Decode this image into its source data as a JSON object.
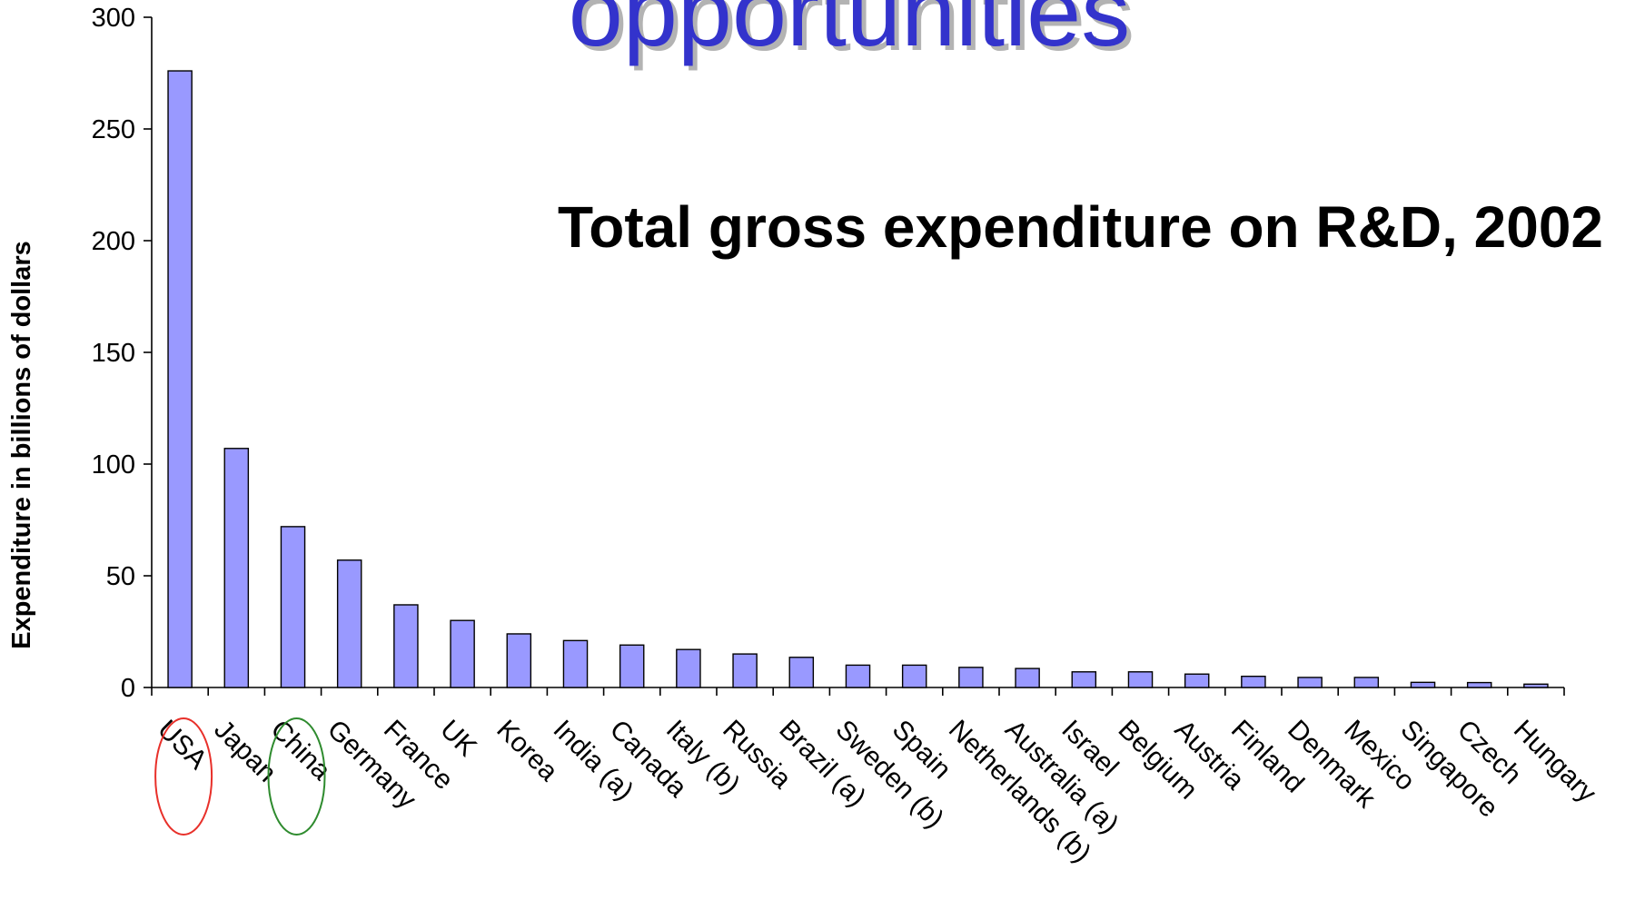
{
  "slide": {
    "heading_fragment": "opportunities",
    "heading_color": "#3333cc",
    "heading_shadow_color": "#b3b3b3"
  },
  "chart_data": {
    "type": "bar",
    "title": "Total gross expenditure on R&D, 2002",
    "xlabel": "",
    "ylabel": "Expenditure in billions of dollars",
    "ylim": [
      0,
      300
    ],
    "yticks": [
      0,
      50,
      100,
      150,
      200,
      250,
      300
    ],
    "grid": false,
    "legend": "none",
    "bar_color": "#9999ff",
    "categories": [
      "USA",
      "Japan",
      "China",
      "Germany",
      "France",
      "UK",
      "Korea",
      "India (a)",
      "Canada",
      "Italy (b)",
      "Russia",
      "Brazil (a)",
      "Sweden (b)",
      "Spain",
      "Netherlands (b)",
      "Australia (a)",
      "Israel",
      "Belgium",
      "Austria",
      "Finland",
      "Denmark",
      "Mexico",
      "Singapore",
      "Czech",
      "Hungary"
    ],
    "values": [
      276,
      107,
      72,
      57,
      37,
      30,
      24,
      21,
      19,
      17,
      15,
      13.5,
      10,
      10,
      9,
      8.5,
      7,
      7,
      6,
      5,
      4.5,
      4.5,
      2.3,
      2.2,
      1.5
    ],
    "highlights": [
      {
        "category": "USA",
        "color": "#e8302a"
      },
      {
        "category": "China",
        "color": "#2e8b2e"
      }
    ]
  }
}
